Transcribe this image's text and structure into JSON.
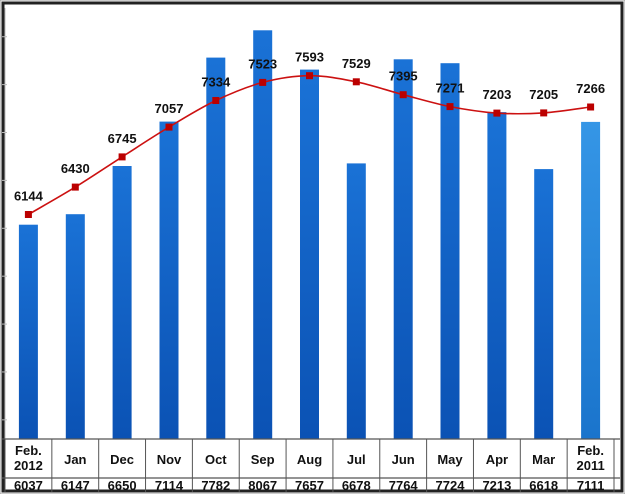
{
  "chart_data": {
    "type": "bar",
    "categories": [
      "Feb. 2012",
      "Jan",
      "Dec",
      "Nov",
      "Oct",
      "Sep",
      "Aug",
      "Jul",
      "Jun",
      "May",
      "Apr",
      "Mar",
      "Feb. 2011"
    ],
    "category_lines": [
      [
        "Feb.",
        "2012"
      ],
      [
        "Jan"
      ],
      [
        "Dec"
      ],
      [
        "Nov"
      ],
      [
        "Oct"
      ],
      [
        "Sep"
      ],
      [
        "Aug"
      ],
      [
        "Jul"
      ],
      [
        "Jun"
      ],
      [
        "May"
      ],
      [
        "Apr"
      ],
      [
        "Mar"
      ],
      [
        "Feb.",
        "2011"
      ]
    ],
    "series": [
      {
        "name": "",
        "kind": "bar",
        "values": [
          6037,
          6147,
          6650,
          7114,
          7782,
          8067,
          7657,
          6678,
          7764,
          7724,
          7213,
          6618,
          7111
        ]
      },
      {
        "name": "",
        "kind": "line",
        "values": [
          6144,
          6430,
          6745,
          7057,
          7334,
          7523,
          7593,
          7529,
          7395,
          7271,
          7203,
          7205,
          7266
        ]
      }
    ],
    "line_labels": [
      "6144",
      "6430",
      "6745",
      "7057",
      "7334",
      "7523",
      "7593",
      "7529",
      "7395",
      "7271",
      "7203",
      "7205",
      "7266"
    ],
    "table_values": [
      "6037",
      "6147",
      "6650",
      "7114",
      "7782",
      "8067",
      "7657",
      "6678",
      "7764",
      "7724",
      "7213",
      "6618",
      "7111"
    ],
    "title": "",
    "xlabel": "",
    "ylabel": "",
    "ylim": [
      3800,
      8300
    ],
    "grid": false,
    "legend": "none",
    "colors": {
      "bar_top": "#1a6fd0",
      "bar_bottom": "#0b4fb0",
      "bar_last": "#2e8fe0",
      "line": "#cc1111",
      "marker": "#bb0000",
      "frame": "#333333",
      "table_line": "#555555"
    }
  }
}
